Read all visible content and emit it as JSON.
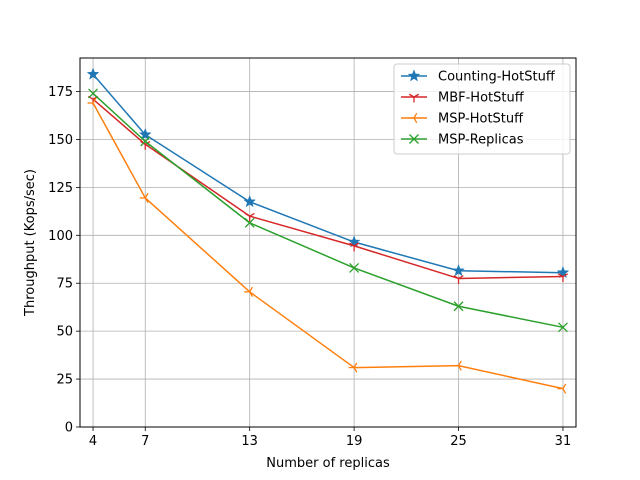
{
  "chart_data": {
    "type": "line",
    "title": "",
    "xlabel": "Number of replicas",
    "ylabel": "Throughput (Kops/sec)",
    "x": [
      4,
      7,
      13,
      19,
      25,
      31
    ],
    "x_tick_labels": [
      "4",
      "7",
      "13",
      "19",
      "25",
      "31"
    ],
    "xlim": [
      3.25,
      31.75
    ],
    "y_ticks": [
      0,
      25,
      50,
      75,
      100,
      125,
      150,
      175
    ],
    "y_tick_labels": [
      "0",
      "25",
      "50",
      "75",
      "100",
      "125",
      "150",
      "175"
    ],
    "ylim": [
      0,
      192.5
    ],
    "grid": true,
    "legend_position": "top-right",
    "series": [
      {
        "name": "Counting-HotStuff",
        "color": "#1f77b4",
        "marker": "star",
        "values": [
          184,
          152.5,
          117.5,
          96.5,
          81.5,
          80.5
        ]
      },
      {
        "name": "MBF-HotStuff",
        "color": "#d62728",
        "marker": "tri-down",
        "values": [
          171,
          147.5,
          110,
          94.5,
          77.5,
          78.5
        ]
      },
      {
        "name": "MSP-HotStuff",
        "color": "#ff7f0e",
        "marker": "tri-left",
        "values": [
          169,
          119.5,
          70.5,
          31,
          32,
          20
        ]
      },
      {
        "name": "MSP-Replicas",
        "color": "#2ca02c",
        "marker": "x",
        "values": [
          174,
          149,
          106.5,
          83,
          63,
          52
        ]
      }
    ]
  }
}
